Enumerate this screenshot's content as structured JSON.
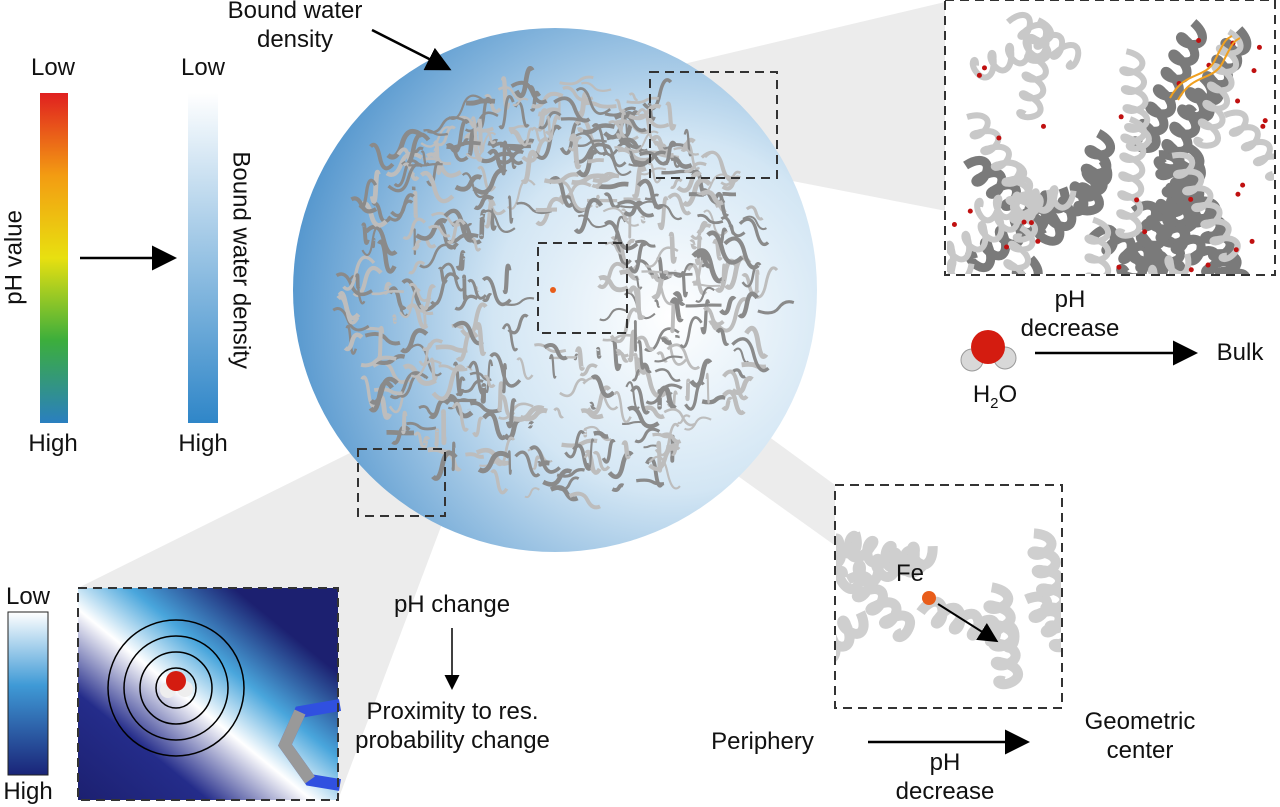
{
  "sphere_label": "Bound water density",
  "ph_bar": {
    "top": "Low",
    "bottom": "High",
    "label": "pH value"
  },
  "water_bar": {
    "top": "Low",
    "bottom": "High",
    "label": "Bound water density"
  },
  "surface_panel": {
    "process": "pH decrease",
    "molecule": {
      "element_1": "H",
      "count": "2",
      "element_2": "O"
    },
    "destination": "Bulk"
  },
  "center_panel": {
    "atom": "Fe",
    "from": "Periphery",
    "process": "pH decrease",
    "to": "Geometric center"
  },
  "local_panel": {
    "bar_top": "Low",
    "bar_bottom": "High",
    "cause": "pH change",
    "effect": "Proximity to res. probability change"
  }
}
